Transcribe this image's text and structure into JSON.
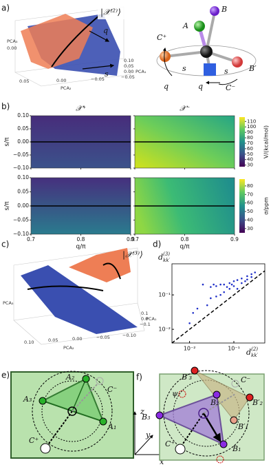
{
  "panel_a": {
    "label": "a)",
    "ket": "|𝒳⁽²⁾⟩",
    "plot_labels": [
      "q",
      "s"
    ],
    "axis_texts": [
      "PCA₃",
      "0.00",
      "0.05",
      "0.00",
      "−0.05",
      "PCA₂",
      "0.10",
      "0.05",
      "0.00",
      "−0.05",
      "PCA₁"
    ],
    "molecule_labels": [
      "B",
      "A",
      "C⁺",
      "B′",
      "C⁻",
      "s",
      "s",
      "q",
      "q"
    ]
  },
  "panel_b": {
    "label": "b)",
    "columns": [
      "𝒳⁺",
      "𝒳⁻"
    ],
    "y_label": "s/π",
    "x_label": "q/π",
    "ylim": [
      -0.1,
      0.1
    ],
    "yticks": [
      {
        "value": 0.1,
        "label": "0.10"
      },
      {
        "value": 0.05,
        "label": "0.05"
      },
      {
        "value": 0,
        "label": "0.00"
      },
      {
        "value": -0.05,
        "label": "−0.05"
      },
      {
        "value": -0.1,
        "label": "−0.10"
      }
    ],
    "xlim": [
      0.7,
      0.9
    ],
    "xticks": [
      0.7,
      0.8,
      0.9
    ],
    "colorbars": [
      {
        "label": "V/(kcal/mol)",
        "lim": [
          27,
          118
        ],
        "ticks": [
          30,
          40,
          50,
          60,
          70,
          80,
          90,
          100,
          110
        ]
      },
      {
        "label": "σ/ppm",
        "lim": [
          25,
          88
        ],
        "ticks": [
          30,
          40,
          50,
          60,
          70,
          80
        ]
      }
    ]
  },
  "panel_c": {
    "label": "c)",
    "ket": "|𝒳⁽³⁾⟩",
    "axis_texts": [
      "PCA₃",
      "0.10",
      "0.05",
      "0.00",
      "−0.05",
      "−0.10",
      "PCA₂",
      "0.1",
      "0.0",
      "−0.1",
      "PCA₁"
    ]
  },
  "panel_d": {
    "label": "d)",
    "y_label": {
      "main": "d",
      "sub": "kk′",
      "sup": "(3)"
    },
    "x_label": {
      "main": "d",
      "sub": "kk′",
      "sup": "(2)"
    },
    "log_scale": true,
    "xlim": [
      0.004,
      0.5
    ],
    "ylim": [
      0.004,
      0.8
    ],
    "xticks": [
      {
        "value": 0.01,
        "label": "10⁻²"
      },
      {
        "value": 0.1,
        "label": "10⁻¹"
      }
    ],
    "yticks": [
      {
        "value": 0.01,
        "label": "10⁻²"
      },
      {
        "value": 0.1,
        "label": "10⁻¹"
      }
    ],
    "color": "#1f2fc8",
    "x": [
      0.3,
      0.25,
      0.2,
      0.15,
      0.1,
      0.08,
      0.06,
      0.05,
      0.04,
      0.035,
      0.2,
      0.15,
      0.1,
      0.08,
      0.06,
      0.05,
      0.04,
      0.03,
      0.12,
      0.25,
      0.18,
      0.07,
      0.09,
      0.12,
      0.03,
      0.025,
      0.02,
      0.015,
      0.012,
      0.01
    ],
    "y": [
      0.45,
      0.4,
      0.35,
      0.3,
      0.25,
      0.22,
      0.2,
      0.2,
      0.18,
      0.2,
      0.28,
      0.22,
      0.18,
      0.15,
      0.12,
      0.1,
      0.09,
      0.08,
      0.15,
      0.33,
      0.25,
      0.17,
      0.2,
      0.27,
      0.17,
      0.05,
      0.2,
      0.04,
      0.03,
      0.015
    ]
  },
  "panel_e": {
    "label": "e)",
    "labels": [
      "A₂",
      "C⁻",
      "A₃",
      "A₁",
      "C⁺"
    ]
  },
  "panel_f": {
    "label": "f)",
    "labels": [
      "B′₃",
      "B′₂",
      "ψ",
      "B₂",
      "B₃",
      "B′₁",
      "B₁",
      "C⁺",
      "C⁻"
    ]
  },
  "axes_labels": [
    "z",
    "y",
    "x"
  ]
}
